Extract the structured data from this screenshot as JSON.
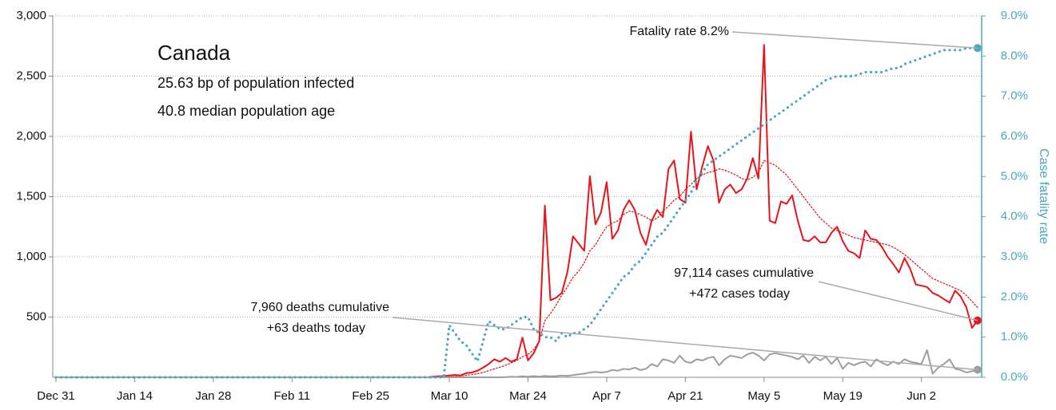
{
  "chart_data": {
    "type": "line",
    "title": "Canada",
    "info": [
      "25.63 bp of population infected",
      "40.8 median population age"
    ],
    "annotations": [
      "Fatality rate 8.2%",
      "97,114 cases cumulative",
      "+472 cases today",
      "7,960 deaths cumulative",
      "+63 deaths today"
    ],
    "y2_label": "Case fatality rate",
    "categories": [
      "Dec 31",
      null,
      null,
      null,
      null,
      null,
      null,
      null,
      null,
      null,
      null,
      null,
      null,
      null,
      "Jan 14",
      null,
      null,
      null,
      null,
      null,
      null,
      null,
      null,
      null,
      null,
      null,
      null,
      null,
      "Jan 28",
      null,
      null,
      null,
      null,
      null,
      null,
      null,
      null,
      null,
      null,
      null,
      null,
      null,
      "Feb 11",
      null,
      null,
      null,
      null,
      null,
      null,
      null,
      null,
      null,
      null,
      null,
      null,
      null,
      "Feb 25",
      null,
      null,
      null,
      null,
      null,
      null,
      null,
      null,
      null,
      null,
      null,
      null,
      null,
      "Mar 10",
      null,
      null,
      null,
      null,
      null,
      null,
      null,
      null,
      null,
      null,
      null,
      null,
      null,
      "Mar 24",
      null,
      null,
      null,
      null,
      null,
      null,
      null,
      null,
      null,
      null,
      null,
      null,
      null,
      "Apr 7",
      null,
      null,
      null,
      null,
      null,
      null,
      null,
      null,
      null,
      null,
      null,
      null,
      null,
      "Apr 21",
      null,
      null,
      null,
      null,
      null,
      null,
      null,
      null,
      null,
      null,
      null,
      null,
      null,
      "May 5",
      null,
      null,
      null,
      null,
      null,
      null,
      null,
      null,
      null,
      null,
      null,
      null,
      null,
      "May 19",
      null,
      null,
      null,
      null,
      null,
      null,
      null,
      null,
      null,
      null,
      null,
      null,
      null,
      "Jun 2",
      null,
      null,
      null,
      null,
      null,
      null,
      null,
      null,
      null,
      null
    ],
    "series": [
      {
        "color": "#e8141b",
        "style": "solid",
        "marker_last": true,
        "values": [
          0,
          0,
          0,
          0,
          0,
          0,
          0,
          0,
          0,
          0,
          0,
          0,
          0,
          0,
          0,
          0,
          0,
          0,
          0,
          0,
          0,
          0,
          0,
          0,
          0,
          0,
          0,
          0,
          0,
          0,
          0,
          0,
          0,
          0,
          0,
          0,
          0,
          0,
          0,
          0,
          0,
          0,
          0,
          0,
          0,
          0,
          0,
          0,
          0,
          0,
          0,
          0,
          0,
          0,
          0,
          0,
          0,
          0,
          0,
          0,
          0,
          0,
          0,
          0,
          0,
          0,
          0,
          5,
          8,
          10,
          15,
          20,
          15,
          35,
          40,
          55,
          80,
          110,
          150,
          130,
          160,
          130,
          150,
          330,
          140,
          200,
          300,
          1425,
          640,
          660,
          700,
          870,
          1170,
          1110,
          1050,
          1670,
          1270,
          1370,
          1620,
          1150,
          1220,
          1390,
          1470,
          1390,
          1200,
          1100,
          1300,
          1390,
          1330,
          1730,
          1800,
          1480,
          1450,
          2040,
          1560,
          1750,
          1920,
          1800,
          1450,
          1560,
          1600,
          1530,
          1560,
          1650,
          1820,
          1650,
          2760,
          1300,
          1280,
          1460,
          1440,
          1510,
          1300,
          1140,
          1130,
          1170,
          1120,
          1120,
          1200,
          1250,
          1130,
          1050,
          1030,
          990,
          1220,
          1150,
          1140,
          1080,
          1000,
          940,
          870,
          990,
          900,
          770,
          760,
          750,
          700,
          680,
          650,
          620,
          720,
          670,
          580,
          410,
          472
        ]
      },
      {
        "color": "#e8141b",
        "style": "dotted",
        "values": [
          0,
          0,
          0,
          0,
          0,
          0,
          0,
          0,
          0,
          0,
          0,
          0,
          0,
          0,
          0,
          0,
          0,
          0,
          0,
          0,
          0,
          0,
          0,
          0,
          0,
          0,
          0,
          0,
          0,
          0,
          0,
          0,
          0,
          0,
          0,
          0,
          0,
          0,
          0,
          0,
          0,
          0,
          0,
          0,
          0,
          0,
          0,
          0,
          0,
          0,
          0,
          0,
          0,
          0,
          0,
          0,
          0,
          0,
          0,
          0,
          0,
          0,
          0,
          0,
          0,
          0,
          0,
          0,
          0,
          0,
          5,
          8,
          12,
          17,
          22,
          30,
          40,
          55,
          70,
          85,
          100,
          120,
          140,
          170,
          190,
          230,
          300,
          470,
          530,
          600,
          680,
          750,
          830,
          880,
          950,
          1050,
          1100,
          1180,
          1250,
          1280,
          1300,
          1350,
          1380,
          1370,
          1350,
          1330,
          1300,
          1320,
          1380,
          1420,
          1470,
          1500,
          1560,
          1600,
          1650,
          1680,
          1700,
          1710,
          1730,
          1720,
          1700,
          1680,
          1650,
          1640,
          1660,
          1700,
          1800,
          1780,
          1760,
          1720,
          1680,
          1620,
          1560,
          1500,
          1440,
          1380,
          1320,
          1280,
          1240,
          1220,
          1200,
          1180,
          1160,
          1150,
          1140,
          1130,
          1120,
          1110,
          1100,
          1080,
          1050,
          1020,
          980,
          940,
          900,
          860,
          820,
          800,
          780,
          760,
          740,
          720,
          680,
          630,
          580
        ]
      },
      {
        "color": "#9e9e9e",
        "style": "solid",
        "marker_last": true,
        "values": [
          0,
          0,
          0,
          0,
          0,
          0,
          0,
          0,
          0,
          0,
          0,
          0,
          0,
          0,
          0,
          0,
          0,
          0,
          0,
          0,
          0,
          0,
          0,
          0,
          0,
          0,
          0,
          0,
          0,
          0,
          0,
          0,
          0,
          0,
          0,
          0,
          0,
          0,
          0,
          0,
          0,
          0,
          0,
          0,
          0,
          0,
          0,
          0,
          0,
          0,
          0,
          0,
          0,
          0,
          0,
          0,
          0,
          0,
          0,
          0,
          0,
          0,
          0,
          0,
          0,
          0,
          0,
          0,
          0,
          0,
          0,
          0,
          0,
          0,
          0,
          0,
          0,
          0,
          0,
          0,
          2,
          5,
          3,
          8,
          5,
          10,
          6,
          12,
          8,
          10,
          15,
          12,
          18,
          25,
          30,
          40,
          45,
          40,
          45,
          60,
          55,
          70,
          65,
          80,
          60,
          70,
          110,
          90,
          150,
          140,
          120,
          180,
          130,
          120,
          150,
          140,
          160,
          170,
          100,
          150,
          180,
          170,
          160,
          190,
          205,
          180,
          140,
          190,
          200,
          190,
          180,
          170,
          150,
          180,
          120,
          170,
          140,
          170,
          110,
          160,
          70,
          120,
          100,
          120,
          130,
          90,
          150,
          120,
          100,
          130,
          110,
          150,
          130,
          120,
          110,
          225,
          30,
          80,
          110,
          150,
          70,
          60,
          40,
          50,
          63
        ]
      },
      {
        "color": "#4aa8c0",
        "style": "dotted",
        "axis": "y2",
        "marker_last": true,
        "values": [
          0,
          0,
          0,
          0,
          0,
          0,
          0,
          0,
          0,
          0,
          0,
          0,
          0,
          0,
          0,
          0,
          0,
          0,
          0,
          0,
          0,
          0,
          0,
          0,
          0,
          0,
          0,
          0,
          0,
          0,
          0,
          0,
          0,
          0,
          0,
          0,
          0,
          0,
          0,
          0,
          0,
          0,
          0,
          0,
          0,
          0,
          0,
          0,
          0,
          0,
          0,
          0,
          0,
          0,
          0,
          0,
          0,
          0,
          0,
          0,
          0,
          0,
          0,
          0,
          0,
          0,
          0,
          0,
          0,
          0,
          1.3,
          1.1,
          0.9,
          0.8,
          0.6,
          0.4,
          0.9,
          1.4,
          1.3,
          1.2,
          1.2,
          1.3,
          1.4,
          1.5,
          1.5,
          1.2,
          1.1,
          1.0,
          1.0,
          0.9,
          1.1,
          1.0,
          1.1,
          1.1,
          1.2,
          1.3,
          1.5,
          1.7,
          1.9,
          2.1,
          2.3,
          2.5,
          2.6,
          2.8,
          2.9,
          3.1,
          3.3,
          3.5,
          3.6,
          3.8,
          4.0,
          4.2,
          4.4,
          4.6,
          4.9,
          5.1,
          5.3,
          5.4,
          5.5,
          5.6,
          5.7,
          5.8,
          5.9,
          6.0,
          6.1,
          6.2,
          6.3,
          6.4,
          6.5,
          6.6,
          6.7,
          6.8,
          6.9,
          7.0,
          7.1,
          7.2,
          7.3,
          7.4,
          7.45,
          7.5,
          7.5,
          7.5,
          7.5,
          7.55,
          7.6,
          7.6,
          7.6,
          7.6,
          7.65,
          7.7,
          7.7,
          7.8,
          7.85,
          7.9,
          7.95,
          8.0,
          8.05,
          8.1,
          8.15,
          8.15,
          8.15,
          8.15,
          8.2,
          8.2,
          8.2
        ]
      }
    ],
    "ylim": [
      0,
      3000
    ],
    "yticks": [
      500,
      {
        "value": 1000,
        "label": "1,000"
      },
      {
        "value": 1500,
        "label": "1,500"
      },
      {
        "value": 2000,
        "label": "2,000"
      },
      {
        "value": 2500,
        "label": "2,500"
      },
      {
        "value": 3000,
        "label": "3,000"
      }
    ],
    "y2lim": [
      0,
      9
    ],
    "y2ticks": [
      {
        "value": 0,
        "label": "0.0%"
      },
      {
        "value": 1,
        "label": "1.0%"
      },
      {
        "value": 2,
        "label": "2.0%"
      },
      {
        "value": 3,
        "label": "3.0%"
      },
      {
        "value": 4,
        "label": "4.0%"
      },
      {
        "value": 5,
        "label": "5.0%"
      },
      {
        "value": 6,
        "label": "6.0%"
      },
      {
        "value": 7,
        "label": "7.0%"
      },
      {
        "value": 8,
        "label": "8.0%"
      },
      {
        "value": 9,
        "label": "9.0%"
      }
    ],
    "y2color": "#4aa8c0",
    "grid": true
  }
}
